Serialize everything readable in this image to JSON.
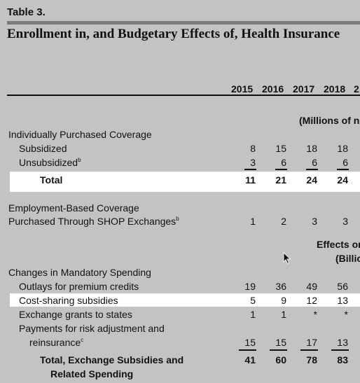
{
  "table_label": "Table 3.",
  "title": "Enrollment in, and Budgetary Effects of, Health Insurance",
  "years": [
    "2015",
    "2016",
    "2017",
    "2018",
    "2"
  ],
  "unit_millions_people": "(Millions of n",
  "unit_effects_line1": "Effects on",
  "unit_effects_line2": "(Billio",
  "sections": {
    "individual": {
      "heading": "Individually Purchased Coverage",
      "subsidized": {
        "label": "Subsidized",
        "values": [
          "8",
          "15",
          "18",
          "18"
        ]
      },
      "unsubsidized": {
        "label": "Unsubsidized",
        "note": "b",
        "values": [
          "3",
          "6",
          "6",
          "6"
        ]
      },
      "total": {
        "label": "Total",
        "values": [
          "11",
          "21",
          "24",
          "24"
        ]
      }
    },
    "employment": {
      "line1": "Employment-Based Coverage",
      "line2": "Purchased Through SHOP Exchanges",
      "note": "b",
      "values": [
        "1",
        "2",
        "3",
        "3"
      ]
    },
    "mandatory": {
      "heading": "Changes in Mandatory Spending",
      "outlays": {
        "label": "Outlays for premium credits",
        "values": [
          "19",
          "36",
          "49",
          "56"
        ]
      },
      "cost_sharing": {
        "label": "Cost-sharing subsidies",
        "values": [
          "5",
          "9",
          "12",
          "13"
        ]
      },
      "grants": {
        "label": "Exchange grants to states",
        "values": [
          "1",
          "1",
          "*",
          "*"
        ]
      },
      "risk": {
        "line1": "Payments for risk adjustment and",
        "line2": "reinsurance",
        "note": "c",
        "values": [
          "15",
          "15",
          "17",
          "13"
        ]
      },
      "total": {
        "line1": "Total, Exchange Subsidies and",
        "line2": "Related Spending",
        "values": [
          "41",
          "60",
          "78",
          "83"
        ]
      }
    }
  }
}
